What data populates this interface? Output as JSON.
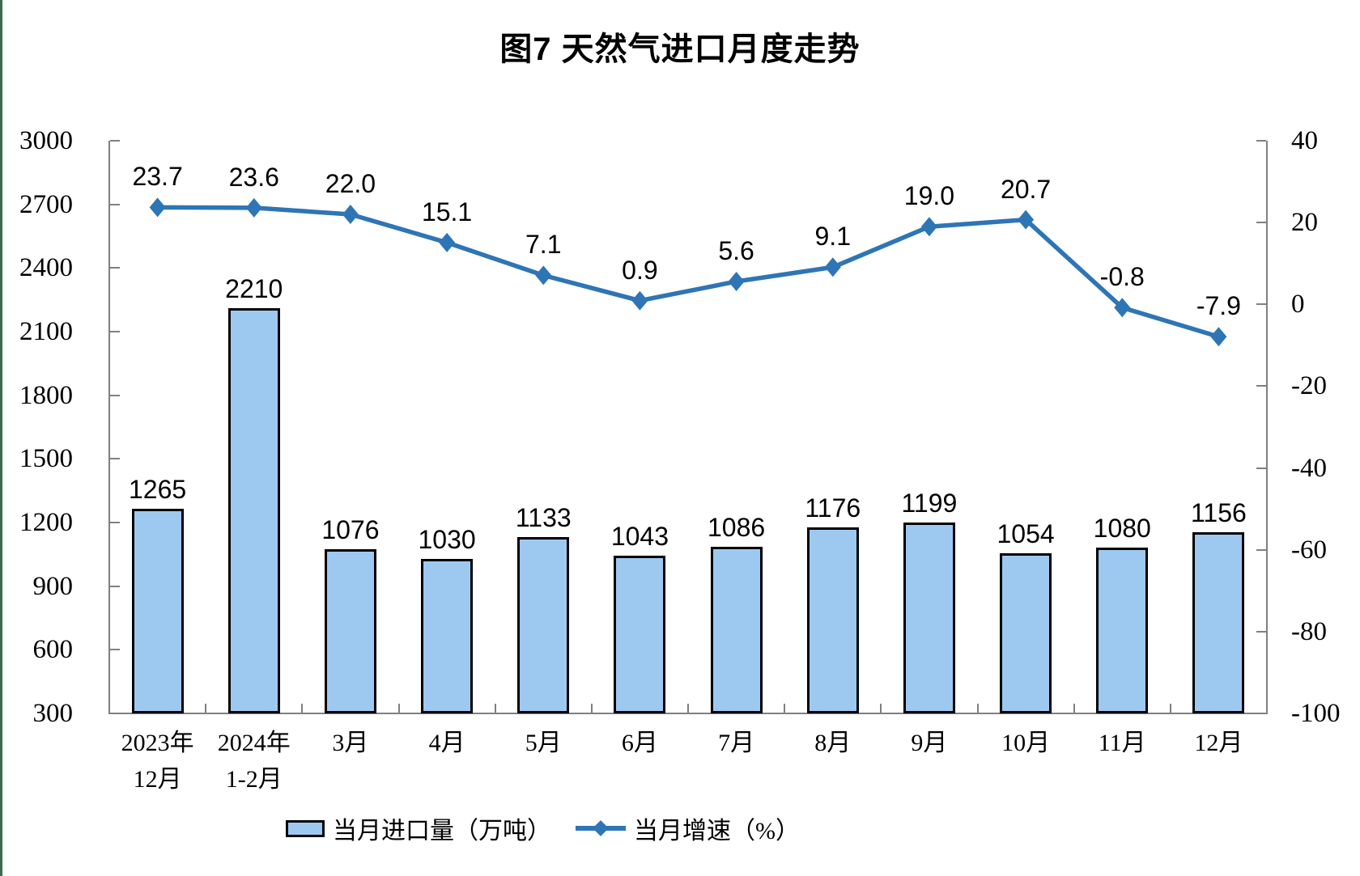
{
  "page": {
    "background": "#FFFFFF",
    "left_accent_color": "#3E6B4F",
    "axis_color": "#808080"
  },
  "title": "图7 天然气进口月度走势",
  "legend": {
    "bar_label": "当月进口量（万吨）",
    "line_label": "当月增速（%）"
  },
  "chart_data": {
    "type": "bar+line combo",
    "title": "图7 天然气进口月度走势",
    "categories": [
      [
        "2023年",
        "12月"
      ],
      [
        "2024年",
        "1-2月"
      ],
      [
        "3月"
      ],
      [
        "4月"
      ],
      [
        "5月"
      ],
      [
        "6月"
      ],
      [
        "7月"
      ],
      [
        "8月"
      ],
      [
        "9月"
      ],
      [
        "10月"
      ],
      [
        "11月"
      ],
      [
        "12月"
      ]
    ],
    "series": [
      {
        "name": "当月进口量（万吨）",
        "type": "bar",
        "axis": "left",
        "color": "#9DC9F1",
        "border_color": "#000000",
        "values": [
          1265,
          2210,
          1076,
          1030,
          1133,
          1043,
          1086,
          1176,
          1199,
          1054,
          1080,
          1156
        ],
        "labels": [
          "1265",
          "2210",
          "1076",
          "1030",
          "1133",
          "1043",
          "1086",
          "1176",
          "1199",
          "1054",
          "1080",
          "1156"
        ]
      },
      {
        "name": "当月增速（%）",
        "type": "line",
        "axis": "right",
        "color": "#2E75B6",
        "marker": "diamond",
        "values": [
          23.7,
          23.6,
          22.0,
          15.1,
          7.1,
          0.9,
          5.6,
          9.1,
          19.0,
          20.7,
          -0.8,
          -7.9
        ],
        "labels": [
          "23.7",
          "23.6",
          "22.0",
          "15.1",
          "7.1",
          "0.9",
          "5.6",
          "9.1",
          "19.0",
          "20.7",
          "-0.8",
          "-7.9"
        ]
      }
    ],
    "left_axis": {
      "min": 300,
      "max": 3000,
      "step": 300,
      "tick_labels": [
        "3000",
        "2700",
        "2400",
        "2100",
        "1800",
        "1500",
        "1200",
        "900",
        "600",
        "300"
      ]
    },
    "right_axis": {
      "min": -100,
      "max": 40,
      "step": 20,
      "tick_labels": [
        "40",
        "20",
        "0",
        "-20",
        "-40",
        "-60",
        "-80",
        "-100"
      ]
    },
    "grid": false,
    "legend_position": "bottom"
  }
}
